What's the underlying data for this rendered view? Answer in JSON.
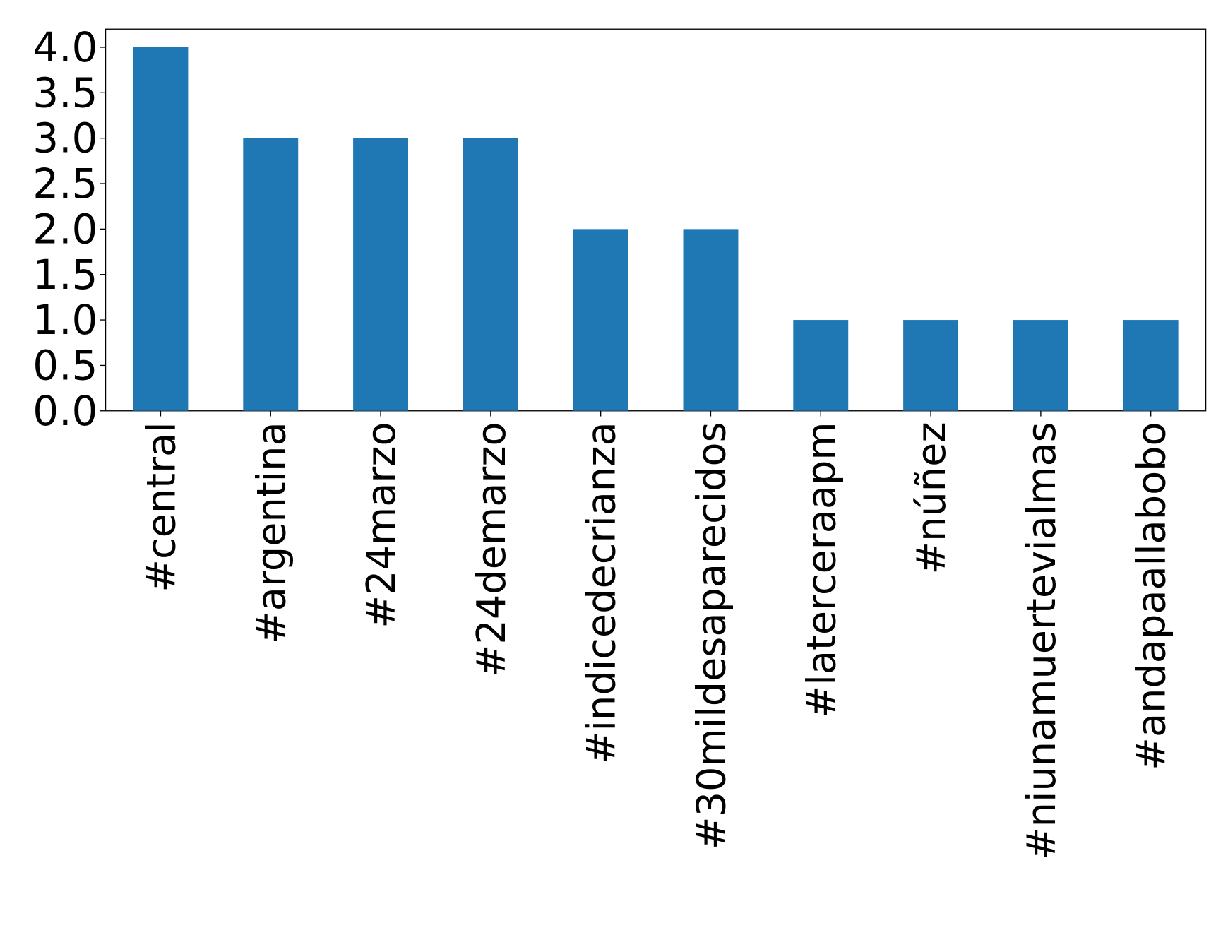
{
  "chart_data": {
    "type": "bar",
    "categories": [
      "#central",
      "#argentina",
      "#24marzo",
      "#24demarzo",
      "#indicedecrianza",
      "#30mildesaparecidos",
      "#laterceraapm",
      "#núñez",
      "#niunamuertevialmas",
      "#andapaallabobo"
    ],
    "values": [
      4,
      3,
      3,
      3,
      2,
      2,
      1,
      1,
      1,
      1
    ],
    "color": "#1f77b4",
    "ylim": [
      0,
      4.2
    ],
    "yticks": [
      {
        "value": 0,
        "label": "0.0"
      },
      {
        "value": 0.5,
        "label": "0.5"
      },
      {
        "value": 1,
        "label": "1.0"
      },
      {
        "value": 1.5,
        "label": "1.5"
      },
      {
        "value": 2,
        "label": "2.0"
      },
      {
        "value": 2.5,
        "label": "2.5"
      },
      {
        "value": 3,
        "label": "3.0"
      },
      {
        "value": 3.5,
        "label": "3.5"
      },
      {
        "value": 4,
        "label": "4.0"
      }
    ],
    "grid": false
  }
}
